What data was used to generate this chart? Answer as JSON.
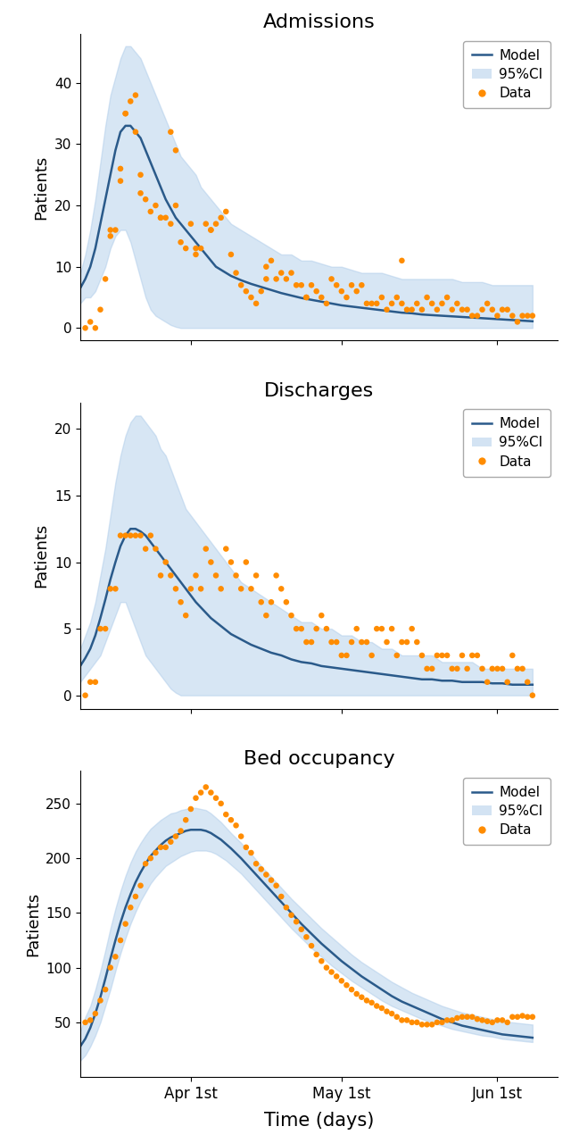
{
  "title1": "Admissions",
  "title2": "Discharges",
  "title3": "Bed occupancy",
  "xlabel": "Time (days)",
  "ylabel": "Patients",
  "xtick_labels": [
    "Apr 1st",
    "May 1st",
    "Jun 1st"
  ],
  "model_color": "#2a5a8a",
  "ci_color": "#a8c8e8",
  "data_color": "#ff8c00",
  "adm_ylim": [
    -2,
    48
  ],
  "adm_yticks": [
    0,
    10,
    20,
    30,
    40
  ],
  "adm_model_x": [
    0,
    1,
    2,
    3,
    4,
    5,
    6,
    7,
    8,
    9,
    10,
    11,
    12,
    13,
    14,
    15,
    16,
    17,
    18,
    19,
    20,
    21,
    22,
    23,
    24,
    25,
    26,
    27,
    28,
    29,
    30,
    32,
    34,
    36,
    38,
    40,
    42,
    44,
    46,
    48,
    50,
    52,
    54,
    56,
    58,
    60,
    62,
    64,
    66,
    68,
    70,
    72,
    74,
    76,
    78,
    80,
    82,
    84,
    86,
    88,
    90
  ],
  "adm_model_y": [
    6.5,
    8,
    10,
    13,
    17,
    21,
    25,
    29,
    32,
    33,
    33,
    32,
    31,
    29,
    27,
    25,
    23,
    21,
    19.5,
    18,
    17,
    16,
    15,
    14,
    13,
    12,
    11,
    10,
    9.5,
    9,
    8.5,
    7.8,
    7.2,
    6.7,
    6.2,
    5.7,
    5.3,
    4.9,
    4.6,
    4.3,
    4.0,
    3.7,
    3.5,
    3.3,
    3.1,
    2.9,
    2.7,
    2.5,
    2.4,
    2.2,
    2.1,
    2.0,
    1.9,
    1.8,
    1.7,
    1.6,
    1.5,
    1.4,
    1.3,
    1.2,
    1.1
  ],
  "adm_ci_lo": [
    4,
    5,
    5,
    6,
    8,
    10,
    13,
    15,
    16,
    16,
    14,
    11,
    8,
    5,
    3,
    2,
    1.5,
    1,
    0.5,
    0.2,
    0,
    0,
    0,
    0,
    0,
    0,
    0,
    0,
    0,
    0,
    0,
    0,
    0,
    0,
    0,
    0,
    0,
    0,
    0,
    0,
    0,
    0,
    0,
    0,
    0,
    0,
    0,
    0,
    0,
    0,
    0,
    0,
    0,
    0,
    0,
    0,
    0,
    0,
    0,
    0,
    0
  ],
  "adm_ci_hi": [
    9,
    12,
    16,
    21,
    27,
    33,
    38,
    41,
    44,
    46,
    46,
    45,
    44,
    42,
    40,
    38,
    36,
    34,
    32,
    30,
    28,
    27,
    26,
    25,
    23,
    22,
    21,
    20,
    19,
    18,
    17,
    16,
    15,
    14,
    13,
    12,
    12,
    11,
    11,
    10.5,
    10,
    10,
    9.5,
    9,
    9,
    9,
    8.5,
    8,
    8,
    8,
    8,
    8,
    8,
    7.5,
    7.5,
    7.5,
    7,
    7,
    7,
    7,
    7
  ],
  "adm_data_x": [
    1,
    2,
    3,
    4,
    5,
    6,
    6,
    7,
    8,
    8,
    9,
    9,
    10,
    11,
    11,
    12,
    12,
    13,
    14,
    15,
    16,
    16,
    17,
    18,
    18,
    19,
    19,
    20,
    21,
    22,
    23,
    23,
    24,
    25,
    26,
    26,
    27,
    28,
    29,
    30,
    31,
    32,
    33,
    34,
    35,
    36,
    37,
    37,
    38,
    39,
    40,
    41,
    42,
    43,
    44,
    45,
    45,
    46,
    47,
    48,
    49,
    50,
    51,
    52,
    53,
    54,
    55,
    56,
    57,
    58,
    59,
    60,
    61,
    62,
    63,
    64,
    64,
    65,
    66,
    67,
    68,
    69,
    70,
    71,
    72,
    73,
    74,
    75,
    76,
    77,
    78,
    79,
    80,
    81,
    82,
    83,
    84,
    85,
    86,
    87,
    88,
    89,
    90
  ],
  "adm_data_y": [
    0,
    1,
    0,
    3,
    8,
    15,
    16,
    16,
    24,
    26,
    35,
    35,
    37,
    38,
    32,
    22,
    25,
    21,
    19,
    20,
    18,
    18,
    18,
    17,
    32,
    29,
    20,
    14,
    13,
    17,
    13,
    12,
    13,
    17,
    16,
    16,
    17,
    18,
    19,
    12,
    9,
    7,
    6,
    5,
    4,
    6,
    8,
    10,
    11,
    8,
    9,
    8,
    9,
    7,
    7,
    5,
    5,
    7,
    6,
    5,
    4,
    8,
    7,
    6,
    5,
    7,
    6,
    7,
    4,
    4,
    4,
    5,
    3,
    4,
    5,
    11,
    4,
    3,
    3,
    4,
    3,
    5,
    4,
    3,
    4,
    5,
    3,
    4,
    3,
    3,
    2,
    2,
    3,
    4,
    3,
    2,
    3,
    3,
    2,
    1,
    2,
    2,
    2
  ],
  "dis_ylim": [
    -1,
    22
  ],
  "dis_yticks": [
    0,
    5,
    10,
    15,
    20
  ],
  "dis_model_x": [
    0,
    1,
    2,
    3,
    4,
    5,
    6,
    7,
    8,
    9,
    10,
    11,
    12,
    13,
    14,
    15,
    16,
    17,
    18,
    19,
    20,
    21,
    22,
    23,
    24,
    25,
    26,
    27,
    28,
    29,
    30,
    32,
    34,
    36,
    38,
    40,
    42,
    44,
    46,
    48,
    50,
    52,
    54,
    56,
    58,
    60,
    62,
    64,
    66,
    68,
    70,
    72,
    74,
    76,
    78,
    80,
    82,
    84,
    86,
    88,
    90
  ],
  "dis_model_y": [
    2.2,
    2.8,
    3.5,
    4.5,
    5.8,
    7.2,
    8.7,
    10.0,
    11.2,
    12.0,
    12.5,
    12.5,
    12.3,
    12.0,
    11.5,
    11.0,
    10.5,
    10.0,
    9.5,
    9.0,
    8.5,
    8.0,
    7.5,
    7.0,
    6.6,
    6.2,
    5.8,
    5.5,
    5.2,
    4.9,
    4.6,
    4.2,
    3.8,
    3.5,
    3.2,
    3.0,
    2.7,
    2.5,
    2.4,
    2.2,
    2.1,
    2.0,
    1.9,
    1.8,
    1.7,
    1.6,
    1.5,
    1.4,
    1.3,
    1.2,
    1.2,
    1.1,
    1.1,
    1.0,
    1.0,
    1.0,
    0.9,
    0.9,
    0.8,
    0.8,
    0.8
  ],
  "dis_ci_lo": [
    1,
    1.5,
    2,
    2.5,
    3,
    4,
    5,
    6,
    7,
    7,
    6,
    5,
    4,
    3,
    2.5,
    2,
    1.5,
    1,
    0.5,
    0.2,
    0,
    0,
    0,
    0,
    0,
    0,
    0,
    0,
    0,
    0,
    0,
    0,
    0,
    0,
    0,
    0,
    0,
    0,
    0,
    0,
    0,
    0,
    0,
    0,
    0,
    0,
    0,
    0,
    0,
    0,
    0,
    0,
    0,
    0,
    0,
    0,
    0,
    0,
    0,
    0,
    0
  ],
  "dis_ci_hi": [
    3.5,
    4.5,
    5.5,
    7,
    9,
    11,
    13.5,
    16,
    18,
    19.5,
    20.5,
    21,
    21,
    20.5,
    20,
    19.5,
    18.5,
    18,
    17,
    16,
    15,
    14,
    13.5,
    13,
    12.5,
    12,
    11.5,
    11,
    10.5,
    10,
    9.5,
    8.5,
    8,
    7.5,
    7,
    6.5,
    6,
    5.5,
    5.5,
    5,
    5,
    4.5,
    4.5,
    4,
    4,
    3.5,
    3.5,
    3,
    3,
    3,
    3,
    2.5,
    2.5,
    2.5,
    2.5,
    2,
    2,
    2,
    2,
    2,
    2
  ],
  "dis_data_x": [
    1,
    2,
    3,
    4,
    5,
    6,
    7,
    8,
    9,
    10,
    11,
    12,
    13,
    14,
    15,
    16,
    17,
    18,
    19,
    20,
    21,
    22,
    23,
    24,
    25,
    26,
    27,
    28,
    29,
    30,
    31,
    32,
    33,
    34,
    35,
    36,
    37,
    38,
    39,
    40,
    41,
    42,
    43,
    44,
    45,
    46,
    47,
    48,
    49,
    50,
    51,
    52,
    53,
    54,
    55,
    56,
    57,
    58,
    59,
    60,
    61,
    62,
    63,
    64,
    65,
    66,
    67,
    68,
    69,
    70,
    71,
    72,
    73,
    74,
    75,
    76,
    77,
    78,
    79,
    80,
    81,
    82,
    83,
    84,
    85,
    86,
    87,
    88,
    89,
    90
  ],
  "dis_data_y": [
    0,
    1,
    1,
    5,
    5,
    8,
    8,
    12,
    12,
    12,
    12,
    12,
    11,
    12,
    11,
    9,
    10,
    9,
    8,
    7,
    6,
    8,
    9,
    8,
    11,
    10,
    9,
    8,
    11,
    10,
    9,
    8,
    10,
    8,
    9,
    7,
    6,
    7,
    9,
    8,
    7,
    6,
    5,
    5,
    4,
    4,
    5,
    6,
    5,
    4,
    4,
    3,
    3,
    4,
    5,
    4,
    4,
    3,
    5,
    5,
    4,
    5,
    3,
    4,
    4,
    5,
    4,
    3,
    2,
    2,
    3,
    3,
    3,
    2,
    2,
    3,
    2,
    3,
    3,
    2,
    1,
    2,
    2,
    2,
    1,
    3,
    2,
    2,
    1,
    0
  ],
  "bed_ylim": [
    0,
    280
  ],
  "bed_yticks": [
    50,
    100,
    150,
    200,
    250
  ],
  "bed_model_x": [
    0,
    1,
    2,
    3,
    4,
    5,
    6,
    7,
    8,
    9,
    10,
    11,
    12,
    13,
    14,
    15,
    16,
    17,
    18,
    19,
    20,
    21,
    22,
    23,
    24,
    25,
    26,
    27,
    28,
    29,
    30,
    32,
    34,
    36,
    38,
    40,
    42,
    44,
    46,
    48,
    50,
    52,
    54,
    56,
    58,
    60,
    62,
    64,
    66,
    68,
    70,
    72,
    74,
    76,
    78,
    80,
    82,
    84,
    86,
    88,
    90
  ],
  "bed_model_y": [
    28,
    35,
    45,
    58,
    73,
    90,
    108,
    125,
    141,
    155,
    167,
    178,
    187,
    195,
    202,
    207,
    212,
    216,
    219,
    221,
    223,
    225,
    226,
    226,
    226,
    225,
    223,
    220,
    217,
    213,
    209,
    200,
    190,
    180,
    170,
    160,
    150,
    140,
    131,
    122,
    114,
    106,
    99,
    92,
    86,
    80,
    74,
    69,
    65,
    61,
    57,
    53,
    50,
    47,
    45,
    43,
    41,
    39,
    38,
    37,
    36
  ],
  "bed_ci_lo": [
    15,
    20,
    28,
    38,
    50,
    65,
    80,
    97,
    113,
    127,
    140,
    151,
    161,
    169,
    177,
    183,
    188,
    193,
    196,
    199,
    202,
    204,
    206,
    207,
    207,
    207,
    206,
    204,
    201,
    198,
    194,
    186,
    176,
    166,
    156,
    146,
    136,
    127,
    118,
    110,
    102,
    95,
    88,
    82,
    76,
    70,
    65,
    61,
    57,
    53,
    50,
    47,
    44,
    42,
    40,
    38,
    37,
    35,
    34,
    33,
    32
  ],
  "bed_ci_hi": [
    42,
    55,
    65,
    80,
    97,
    116,
    136,
    154,
    170,
    184,
    196,
    206,
    214,
    221,
    227,
    231,
    235,
    238,
    241,
    242,
    244,
    245,
    246,
    246,
    245,
    244,
    241,
    237,
    233,
    228,
    223,
    214,
    204,
    193,
    183,
    173,
    163,
    154,
    145,
    136,
    128,
    120,
    112,
    105,
    99,
    93,
    87,
    82,
    77,
    73,
    69,
    65,
    62,
    59,
    57,
    55,
    53,
    51,
    50,
    49,
    48
  ],
  "bed_data_x": [
    1,
    2,
    3,
    4,
    5,
    6,
    7,
    8,
    9,
    10,
    11,
    12,
    13,
    14,
    15,
    16,
    17,
    18,
    19,
    20,
    21,
    22,
    23,
    24,
    25,
    26,
    27,
    28,
    29,
    30,
    31,
    32,
    33,
    34,
    35,
    36,
    37,
    38,
    39,
    40,
    41,
    42,
    43,
    44,
    45,
    46,
    47,
    48,
    49,
    50,
    51,
    52,
    53,
    54,
    55,
    56,
    57,
    58,
    59,
    60,
    61,
    62,
    63,
    64,
    65,
    66,
    67,
    68,
    69,
    70,
    71,
    72,
    73,
    74,
    75,
    76,
    77,
    78,
    79,
    80,
    81,
    82,
    83,
    84,
    85,
    86,
    87,
    88,
    89,
    90
  ],
  "bed_data_y": [
    50,
    52,
    58,
    70,
    80,
    100,
    110,
    125,
    140,
    155,
    165,
    175,
    195,
    200,
    205,
    210,
    210,
    215,
    220,
    225,
    235,
    245,
    255,
    260,
    265,
    260,
    255,
    250,
    240,
    235,
    230,
    220,
    210,
    205,
    195,
    190,
    185,
    180,
    175,
    165,
    155,
    148,
    142,
    135,
    128,
    120,
    112,
    106,
    100,
    96,
    92,
    88,
    84,
    80,
    76,
    73,
    70,
    68,
    65,
    63,
    60,
    58,
    55,
    52,
    52,
    50,
    50,
    48,
    48,
    48,
    50,
    50,
    52,
    52,
    54,
    55,
    55,
    55,
    53,
    52,
    51,
    50,
    52,
    52,
    50,
    55,
    55,
    56,
    55,
    55
  ]
}
